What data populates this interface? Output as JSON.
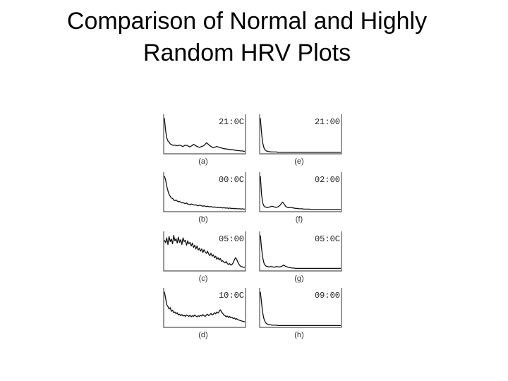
{
  "title_line1": "Comparison of Normal and Highly",
  "title_line2": "Random HRV Plots",
  "chart_data": {
    "type": "line",
    "title": "Comparison of Normal and Highly Random HRV Plots",
    "panels": [
      {
        "label": "(a)",
        "time": "21:0C",
        "values": [
          0.95,
          0.62,
          0.42,
          0.33,
          0.3,
          0.25,
          0.23,
          0.22,
          0.21,
          0.22,
          0.21,
          0.2,
          0.21,
          0.22,
          0.21,
          0.19,
          0.18,
          0.2,
          0.22,
          0.21,
          0.2,
          0.18,
          0.17,
          0.19,
          0.21,
          0.24,
          0.22,
          0.2,
          0.18,
          0.17,
          0.16,
          0.17,
          0.18,
          0.19,
          0.21,
          0.24,
          0.28,
          0.26,
          0.23,
          0.2,
          0.18,
          0.16,
          0.15,
          0.16,
          0.17,
          0.18,
          0.17,
          0.16,
          0.15,
          0.14,
          0.13,
          0.12,
          0.12,
          0.11,
          0.11,
          0.1,
          0.1,
          0.1,
          0.09,
          0.09,
          0.08,
          0.08,
          0.07,
          0.07,
          0.07,
          0.06,
          0.06,
          0.06,
          0.05,
          0.05
        ]
      },
      {
        "label": "(e)",
        "time": "21:00",
        "values": [
          0.95,
          0.55,
          0.28,
          0.15,
          0.09,
          0.06,
          0.05,
          0.04,
          0.04,
          0.03,
          0.03,
          0.03,
          0.03,
          0.03,
          0.03,
          0.02,
          0.02,
          0.02,
          0.02,
          0.02,
          0.02,
          0.02,
          0.02,
          0.02,
          0.02,
          0.02,
          0.02,
          0.02,
          0.02,
          0.02,
          0.02,
          0.02,
          0.02,
          0.02,
          0.02,
          0.02,
          0.02,
          0.02,
          0.02,
          0.02,
          0.02,
          0.02,
          0.02,
          0.02,
          0.02,
          0.02,
          0.02,
          0.02,
          0.02,
          0.02,
          0.02,
          0.02,
          0.02,
          0.02,
          0.02,
          0.02,
          0.02,
          0.02,
          0.02,
          0.02,
          0.02,
          0.02,
          0.02,
          0.02,
          0.02,
          0.02,
          0.02,
          0.02,
          0.02,
          0.02
        ]
      },
      {
        "label": "(b)",
        "time": "00:0C",
        "values": [
          0.95,
          0.85,
          0.68,
          0.55,
          0.45,
          0.4,
          0.35,
          0.34,
          0.3,
          0.28,
          0.3,
          0.27,
          0.25,
          0.26,
          0.24,
          0.22,
          0.23,
          0.21,
          0.2,
          0.22,
          0.19,
          0.18,
          0.17,
          0.19,
          0.18,
          0.17,
          0.16,
          0.17,
          0.15,
          0.14,
          0.16,
          0.15,
          0.14,
          0.13,
          0.14,
          0.13,
          0.12,
          0.13,
          0.12,
          0.11,
          0.12,
          0.11,
          0.1,
          0.11,
          0.1,
          0.1,
          0.09,
          0.1,
          0.09,
          0.09,
          0.08,
          0.09,
          0.08,
          0.08,
          0.08,
          0.07,
          0.08,
          0.07,
          0.07,
          0.07,
          0.06,
          0.07,
          0.06,
          0.06,
          0.06,
          0.06,
          0.05,
          0.06,
          0.05,
          0.05
        ]
      },
      {
        "label": "(f)",
        "time": "02:00",
        "values": [
          0.95,
          0.45,
          0.22,
          0.14,
          0.11,
          0.1,
          0.09,
          0.1,
          0.11,
          0.12,
          0.13,
          0.12,
          0.11,
          0.1,
          0.1,
          0.11,
          0.13,
          0.16,
          0.2,
          0.24,
          0.21,
          0.16,
          0.12,
          0.1,
          0.09,
          0.09,
          0.1,
          0.09,
          0.08,
          0.08,
          0.07,
          0.07,
          0.07,
          0.06,
          0.06,
          0.06,
          0.06,
          0.05,
          0.05,
          0.05,
          0.05,
          0.05,
          0.05,
          0.04,
          0.04,
          0.04,
          0.04,
          0.04,
          0.04,
          0.04,
          0.04,
          0.04,
          0.04,
          0.04,
          0.04,
          0.04,
          0.04,
          0.04,
          0.04,
          0.04,
          0.04,
          0.04,
          0.04,
          0.04,
          0.04,
          0.04,
          0.04,
          0.04,
          0.04,
          0.04
        ]
      },
      {
        "label": "(c)",
        "time": "05:00",
        "values": [
          0.82,
          0.75,
          0.88,
          0.7,
          0.92,
          0.78,
          0.85,
          0.72,
          0.95,
          0.8,
          0.86,
          0.74,
          0.9,
          0.76,
          0.83,
          0.7,
          0.88,
          0.78,
          0.82,
          0.68,
          0.8,
          0.72,
          0.76,
          0.66,
          0.74,
          0.62,
          0.68,
          0.58,
          0.66,
          0.55,
          0.6,
          0.52,
          0.58,
          0.48,
          0.56,
          0.5,
          0.46,
          0.52,
          0.44,
          0.4,
          0.46,
          0.38,
          0.42,
          0.34,
          0.38,
          0.3,
          0.34,
          0.28,
          0.32,
          0.24,
          0.26,
          0.22,
          0.2,
          0.24,
          0.18,
          0.16,
          0.18,
          0.14,
          0.16,
          0.2,
          0.28,
          0.34,
          0.3,
          0.22,
          0.16,
          0.12,
          0.1,
          0.09,
          0.08,
          0.08
        ]
      },
      {
        "label": "(g)",
        "time": "05:0C",
        "values": [
          0.95,
          0.6,
          0.35,
          0.2,
          0.14,
          0.11,
          0.1,
          0.09,
          0.09,
          0.1,
          0.09,
          0.09,
          0.08,
          0.09,
          0.1,
          0.09,
          0.09,
          0.09,
          0.1,
          0.12,
          0.14,
          0.12,
          0.1,
          0.09,
          0.08,
          0.07,
          0.07,
          0.06,
          0.06,
          0.06,
          0.05,
          0.05,
          0.05,
          0.05,
          0.05,
          0.05,
          0.05,
          0.05,
          0.05,
          0.05,
          0.05,
          0.05,
          0.05,
          0.05,
          0.05,
          0.05,
          0.05,
          0.05,
          0.05,
          0.05,
          0.05,
          0.05,
          0.05,
          0.05,
          0.05,
          0.05,
          0.05,
          0.05,
          0.05,
          0.05,
          0.05,
          0.05,
          0.05,
          0.05,
          0.05,
          0.05,
          0.05,
          0.05,
          0.05,
          0.05
        ]
      },
      {
        "label": "(d)",
        "time": "10:0C",
        "values": [
          0.95,
          0.78,
          0.6,
          0.55,
          0.48,
          0.52,
          0.42,
          0.45,
          0.38,
          0.4,
          0.35,
          0.38,
          0.32,
          0.34,
          0.3,
          0.33,
          0.29,
          0.31,
          0.28,
          0.32,
          0.3,
          0.28,
          0.31,
          0.27,
          0.3,
          0.28,
          0.32,
          0.29,
          0.27,
          0.3,
          0.28,
          0.31,
          0.29,
          0.33,
          0.3,
          0.28,
          0.32,
          0.34,
          0.3,
          0.33,
          0.36,
          0.32,
          0.34,
          0.38,
          0.35,
          0.4,
          0.37,
          0.42,
          0.46,
          0.4,
          0.36,
          0.32,
          0.3,
          0.27,
          0.29,
          0.25,
          0.28,
          0.24,
          0.26,
          0.22,
          0.24,
          0.2,
          0.22,
          0.19,
          0.18,
          0.17,
          0.16,
          0.15,
          0.14,
          0.13
        ]
      },
      {
        "label": "(h)",
        "time": "09:00",
        "values": [
          0.95,
          0.65,
          0.38,
          0.22,
          0.14,
          0.09,
          0.07,
          0.06,
          0.05,
          0.05,
          0.04,
          0.04,
          0.04,
          0.04,
          0.04,
          0.03,
          0.03,
          0.03,
          0.03,
          0.03,
          0.03,
          0.03,
          0.03,
          0.03,
          0.03,
          0.03,
          0.03,
          0.03,
          0.03,
          0.03,
          0.03,
          0.03,
          0.03,
          0.03,
          0.03,
          0.03,
          0.03,
          0.03,
          0.03,
          0.03,
          0.03,
          0.03,
          0.03,
          0.03,
          0.03,
          0.03,
          0.03,
          0.03,
          0.03,
          0.03,
          0.03,
          0.03,
          0.03,
          0.03,
          0.03,
          0.03,
          0.03,
          0.03,
          0.03,
          0.03,
          0.03,
          0.03,
          0.03,
          0.03,
          0.03,
          0.03,
          0.03,
          0.03,
          0.03,
          0.03
        ]
      }
    ],
    "ylim": [
      0,
      1
    ],
    "grid": false
  }
}
